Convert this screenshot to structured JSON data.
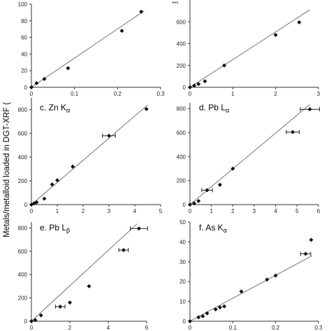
{
  "y_axis_label": "Metals/metalloid loaded in DGT-XRF (",
  "panel_b_top_label": "***",
  "chart_data": [
    {
      "type": "scatter",
      "panel": "a",
      "title": "",
      "xlim": [
        0,
        0.3
      ],
      "ylim": [
        0,
        100
      ],
      "xticks": [
        "0",
        "0.1",
        "0.2",
        "0.3"
      ],
      "yticks": [
        "0",
        "20",
        "40",
        "60",
        "80",
        "100"
      ],
      "points": [
        {
          "x": 0,
          "y": 0
        },
        {
          "x": 0.012,
          "y": 5
        },
        {
          "x": 0.03,
          "y": 10
        },
        {
          "x": 0.085,
          "y": 23
        },
        {
          "x": 0.21,
          "y": 68
        },
        {
          "x": 0.255,
          "y": 91
        }
      ],
      "fit_line": [
        [
          0,
          0
        ],
        [
          0.262,
          92
        ]
      ]
    },
    {
      "type": "scatter",
      "panel": "b",
      "title": "",
      "xlim": [
        0,
        3
      ],
      "ylim": [
        0,
        800
      ],
      "xticks": [
        "0",
        "1",
        "2",
        "3"
      ],
      "yticks": [
        "0",
        "200",
        "400",
        "600"
      ],
      "points": [
        {
          "x": 0,
          "y": 0
        },
        {
          "x": 0.1,
          "y": 15
        },
        {
          "x": 0.2,
          "y": 30
        },
        {
          "x": 0.35,
          "y": 55
        },
        {
          "x": 0.8,
          "y": 200
        },
        {
          "x": 2.0,
          "y": 480
        },
        {
          "x": 2.55,
          "y": 595
        }
      ],
      "fit_line": [
        [
          0,
          0
        ],
        [
          2.8,
          710
        ]
      ]
    },
    {
      "type": "scatter",
      "panel": "c",
      "title": "c. Zn K",
      "title_sub": "α",
      "xlim": [
        0,
        5
      ],
      "ylim": [
        0,
        900
      ],
      "xticks": [
        "0",
        "1",
        "2",
        "3",
        "4",
        "5"
      ],
      "yticks": [
        "0",
        "200",
        "400",
        "600",
        "800"
      ],
      "points": [
        {
          "x": 0,
          "y": 0
        },
        {
          "x": 0.1,
          "y": 10
        },
        {
          "x": 0.2,
          "y": 20
        },
        {
          "x": 0.5,
          "y": 50
        },
        {
          "x": 0.8,
          "y": 170
        },
        {
          "x": 1.0,
          "y": 205
        },
        {
          "x": 1.6,
          "y": 320
        },
        {
          "x": 3.0,
          "y": 580,
          "xerr": 0.25
        },
        {
          "x": 4.45,
          "y": 805
        }
      ],
      "fit_line": [
        [
          0,
          0
        ],
        [
          4.5,
          840
        ]
      ]
    },
    {
      "type": "scatter",
      "panel": "d",
      "title": "d. Pb L",
      "title_sub": "α",
      "xlim": [
        0,
        6
      ],
      "ylim": [
        0,
        850
      ],
      "xticks": [
        "0",
        "1",
        "2",
        "3",
        "4",
        "5",
        "6"
      ],
      "yticks": [
        "0",
        "200",
        "400",
        "600",
        "800"
      ],
      "points": [
        {
          "x": 0,
          "y": 0
        },
        {
          "x": 0.2,
          "y": 10
        },
        {
          "x": 0.4,
          "y": 30
        },
        {
          "x": 0.8,
          "y": 120,
          "xerr": 0.25
        },
        {
          "x": 1.4,
          "y": 165
        },
        {
          "x": 2.0,
          "y": 300
        },
        {
          "x": 4.8,
          "y": 605,
          "xerr": 0.3
        },
        {
          "x": 5.6,
          "y": 795,
          "xerr": 0.45
        }
      ],
      "fit_line": [
        [
          0,
          0
        ],
        [
          5.6,
          835
        ]
      ]
    },
    {
      "type": "scatter",
      "panel": "e",
      "title": "e. Pb L",
      "title_sub": "β",
      "xlim": [
        0,
        6
      ],
      "ylim": [
        0,
        850
      ],
      "xticks": [
        "0",
        "2",
        "4",
        "6"
      ],
      "yticks": [
        "0",
        "200",
        "400",
        "600",
        "800"
      ],
      "points": [
        {
          "x": 0,
          "y": 0
        },
        {
          "x": 0.2,
          "y": 10
        },
        {
          "x": 0.5,
          "y": 50
        },
        {
          "x": 1.5,
          "y": 125,
          "xerr": 0.25
        },
        {
          "x": 2.0,
          "y": 160
        },
        {
          "x": 3.0,
          "y": 300
        },
        {
          "x": 4.8,
          "y": 610,
          "xerr": 0.25
        },
        {
          "x": 5.6,
          "y": 795,
          "xerr": 0.45
        }
      ],
      "fit_line": [
        [
          0,
          0
        ],
        [
          5.5,
          835
        ]
      ]
    },
    {
      "type": "scatter",
      "panel": "f",
      "title": "f. As K",
      "title_sub": "α",
      "xlim": [
        0,
        0.3
      ],
      "ylim": [
        0,
        50
      ],
      "xticks": [
        "0",
        "0.1",
        "0.2",
        "0.3"
      ],
      "yticks": [
        "0",
        "10",
        "20",
        "30",
        "40",
        "50"
      ],
      "points": [
        {
          "x": 0,
          "y": 0
        },
        {
          "x": 0.02,
          "y": 2
        },
        {
          "x": 0.03,
          "y": 2.5
        },
        {
          "x": 0.04,
          "y": 4
        },
        {
          "x": 0.06,
          "y": 6
        },
        {
          "x": 0.07,
          "y": 7
        },
        {
          "x": 0.08,
          "y": 7.5
        },
        {
          "x": 0.12,
          "y": 15
        },
        {
          "x": 0.18,
          "y": 21
        },
        {
          "x": 0.2,
          "y": 23
        },
        {
          "x": 0.27,
          "y": 34,
          "xerr": 0.012
        },
        {
          "x": 0.283,
          "y": 41
        }
      ],
      "fit_line": [
        [
          0,
          0
        ],
        [
          0.285,
          33
        ]
      ]
    }
  ]
}
